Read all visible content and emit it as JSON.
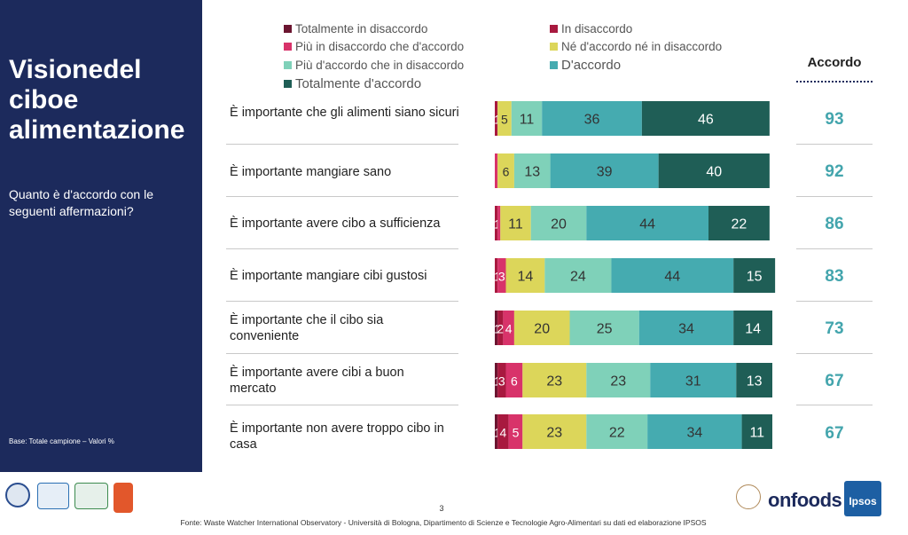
{
  "panel": {
    "title": "Visionedel ciboe alimentazione",
    "question": "Quanto è d'accordo con le seguenti affermazioni?",
    "base_note": "Base: Totale campione – Valori %"
  },
  "accordo_header": "Accordo",
  "footer": {
    "page_number": "3",
    "source": "Fonte: Waste Watcher International Observatory - Università di Bologna, Dipartimento di Scienze e Tecnologie Agro-Alimentari su dati ed elaborazione IPSOS",
    "logo_onfoods": "onfoods",
    "logo_ipsos": "Ipsos"
  },
  "colors": {
    "panel_bg": "#1c2a5c",
    "accordo_text": "#43a5ad",
    "series": [
      "#6b1530",
      "#a8193f",
      "#d8336a",
      "#dcd65a",
      "#7fd1b9",
      "#45abb0",
      "#1f5e56"
    ]
  },
  "chart_data": {
    "type": "bar",
    "orientation": "horizontal",
    "stacked": true,
    "unit": "%",
    "legend_position": "top",
    "categories": [
      "È importante che gli alimenti siano sicuri",
      "È importante mangiare sano",
      "È importante avere cibo a sufficienza",
      "È importante mangiare cibi gustosi",
      "È importante che il cibo sia conveniente",
      "È importante avere cibi a buon mercato",
      "È importante non avere troppo cibo in casa"
    ],
    "series": [
      {
        "name": "Totalmente in disaccordo",
        "values": [
          0,
          0,
          0,
          0,
          1,
          1,
          1
        ]
      },
      {
        "name": "In disaccordo",
        "values": [
          1,
          0,
          1,
          1,
          2,
          3,
          4
        ]
      },
      {
        "name": "Più in disaccordo che d'accordo",
        "values": [
          0,
          1,
          1,
          3,
          4,
          6,
          5
        ]
      },
      {
        "name": "Né d'accordo né in disaccordo",
        "values": [
          5,
          6,
          11,
          14,
          20,
          23,
          23
        ]
      },
      {
        "name": "Più d'accordo che in disaccordo",
        "values": [
          11,
          13,
          20,
          24,
          25,
          23,
          22
        ]
      },
      {
        "name": "D'accordo",
        "values": [
          36,
          39,
          44,
          44,
          34,
          31,
          34
        ]
      },
      {
        "name": "Totalmente d'accordo",
        "values": [
          46,
          40,
          22,
          15,
          14,
          13,
          11
        ]
      }
    ],
    "labels": [
      [
        "",
        "1",
        "",
        "5",
        "11",
        "36",
        "46"
      ],
      [
        "",
        "",
        "",
        "6",
        "13",
        "39",
        "40"
      ],
      [
        "",
        "1",
        "",
        "11",
        "20",
        "44",
        "22"
      ],
      [
        "",
        "1",
        "3",
        "14",
        "24",
        "44",
        "15"
      ],
      [
        "1",
        "2",
        "4",
        "20",
        "25",
        "34",
        "14"
      ],
      [
        "1",
        "3",
        "6",
        "23",
        "23",
        "31",
        "13"
      ],
      [
        "1",
        "4",
        "5",
        "23",
        "22",
        "34",
        "11"
      ]
    ],
    "accordo": [
      93,
      92,
      86,
      83,
      73,
      67,
      67
    ]
  }
}
